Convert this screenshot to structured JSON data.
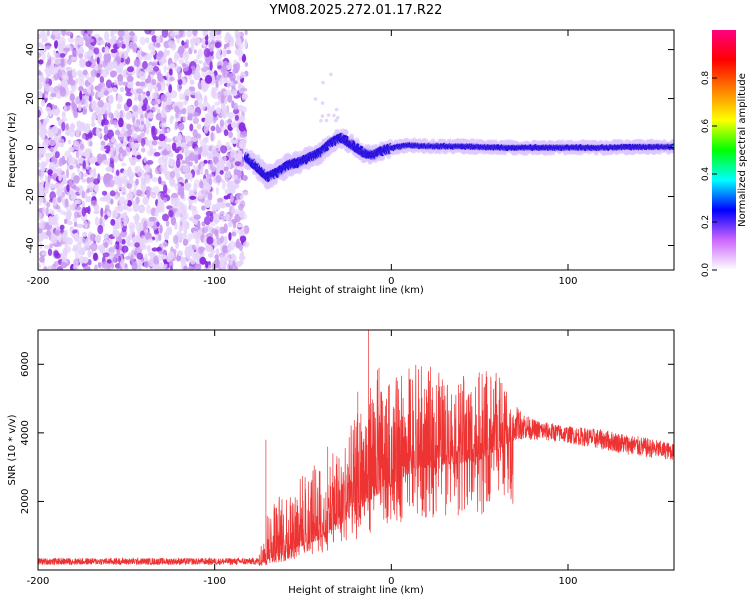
{
  "title": "YM08.2025.272.01.17.R22",
  "chart_data": [
    {
      "type": "heatmap",
      "name": "spectrogram",
      "xlabel": "Height of straight line (km)",
      "ylabel": "Frequency (Hz)",
      "xlim": [
        -200,
        160
      ],
      "ylim": [
        -50,
        48
      ],
      "xticks": [
        -200,
        -100,
        0,
        100
      ],
      "yticks": [
        -40,
        -20,
        0,
        20,
        40
      ],
      "noise_region_x": [
        -200,
        -82
      ],
      "signal_start_x": -82,
      "ridge": {
        "x": [
          -82,
          -76,
          -70,
          -64,
          -58,
          -52,
          -46,
          -40,
          -34,
          -28,
          -22,
          -16,
          -10,
          -4,
          2,
          10,
          20,
          40,
          60,
          80,
          100,
          120,
          140,
          160
        ],
        "freq": [
          -4,
          -8,
          -12,
          -10,
          -7,
          -6,
          -4,
          -2,
          2,
          4,
          1,
          -2,
          -3,
          -1,
          0,
          1,
          0.5,
          0.5,
          0,
          0,
          0,
          0,
          0.2,
          0.3
        ]
      },
      "colorbar": {
        "label": "Normalized spectral amplitude",
        "range": [
          0,
          1
        ],
        "ticks": [
          0.0,
          0.2,
          0.4,
          0.6,
          0.8
        ],
        "colors": [
          "#ffffff",
          "#cc66ff",
          "#0000ff",
          "#00ffff",
          "#00ff00",
          "#ffff00",
          "#ff8000",
          "#ff0000",
          "#ff0080"
        ]
      }
    },
    {
      "type": "line",
      "name": "snr",
      "xlabel": "Height of straight line (km)",
      "ylabel": "SNR (10 * v/v)",
      "xlim": [
        -200,
        160
      ],
      "ylim": [
        0,
        7000
      ],
      "xticks": [
        -200,
        -100,
        0,
        100
      ],
      "yticks": [
        2000,
        4000,
        6000
      ],
      "color": "#ee3333",
      "envelope": {
        "x": [
          -200,
          -90,
          -75,
          -70,
          -60,
          -50,
          -40,
          -30,
          -20,
          -10,
          0,
          10,
          20,
          30,
          40,
          50,
          60,
          70,
          80,
          100,
          120,
          140,
          160
        ],
        "base": [
          150,
          150,
          150,
          300,
          500,
          700,
          900,
          1300,
          1700,
          2100,
          2500,
          2800,
          3000,
          3100,
          3100,
          3200,
          3500,
          3800,
          3800,
          3700,
          3500,
          3300,
          3200
        ],
        "peak": [
          350,
          350,
          360,
          2000,
          2400,
          2900,
          3200,
          3500,
          4500,
          6000,
          5500,
          6000,
          6000,
          5700,
          5700,
          5800,
          5800,
          4800,
          4400,
          4200,
          4100,
          3900,
          3700
        ]
      },
      "spikes": [
        {
          "x": -71,
          "y": 3800
        },
        {
          "x": -36,
          "y": 3600
        },
        {
          "x": -19,
          "y": 5200
        },
        {
          "x": -13,
          "y": 7000
        },
        {
          "x": -7,
          "y": 5900
        }
      ]
    }
  ]
}
